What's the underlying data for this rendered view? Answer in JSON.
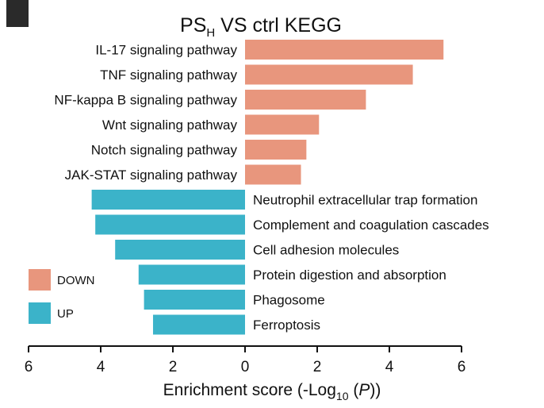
{
  "chart_data": {
    "type": "bar",
    "orientation": "horizontal-diverging",
    "title_main": "PS",
    "title_sub": "H",
    "title_rest": " VS ctrl  KEGG",
    "xlabel_main": "Enrichment score (-Log",
    "xlabel_sub": "10",
    "xlabel_open": " (",
    "xlabel_var": "P",
    "xlabel_close": "))",
    "xlim": [
      -6,
      6
    ],
    "xticks": [
      -6,
      -4,
      -2,
      0,
      2,
      4,
      6
    ],
    "xtick_labels": [
      "6",
      "4",
      "2",
      "0",
      "2",
      "4",
      "6"
    ],
    "grid": false,
    "legend_position": "left",
    "series": [
      {
        "name": "DOWN",
        "color": "#E8967D",
        "categories": [
          "IL-17 signaling pathway",
          "TNF signaling pathway",
          "NF-kappa B signaling pathway",
          "Wnt signaling pathway",
          "Notch signaling pathway",
          "JAK-STAT signaling pathway"
        ],
        "values": [
          5.5,
          4.65,
          3.35,
          2.05,
          1.7,
          1.55
        ]
      },
      {
        "name": "UP",
        "color": "#3BB3C9",
        "categories": [
          "Neutrophil extracellular trap formation",
          "Complement and coagulation cascades",
          "Cell adhesion molecules",
          "Protein digestion and absorption",
          "Phagosome",
          "Ferroptosis"
        ],
        "values": [
          4.25,
          4.15,
          3.6,
          2.95,
          2.8,
          2.55
        ]
      }
    ]
  }
}
